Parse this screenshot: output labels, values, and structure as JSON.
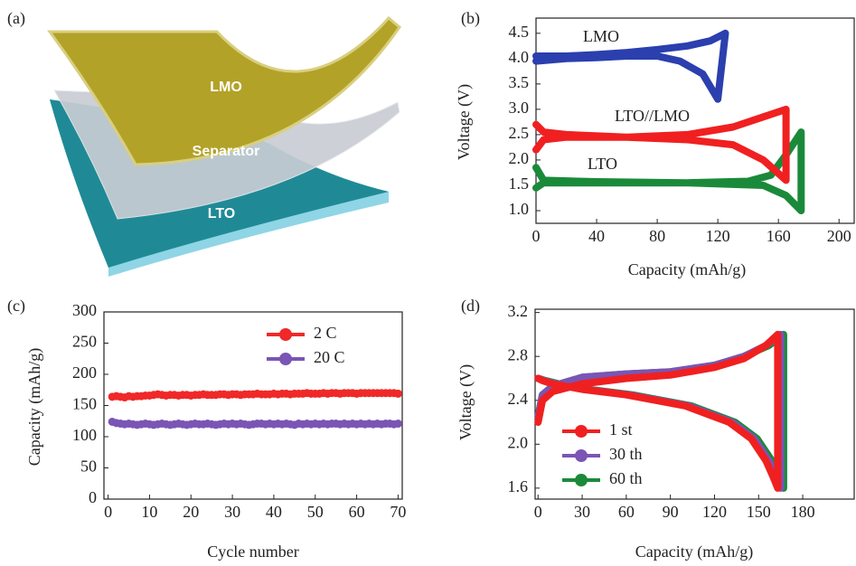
{
  "illustration": {
    "panel_label": "(a)",
    "layers": [
      "LMO",
      "Separator",
      "LTO"
    ]
  },
  "chart_data": [
    {
      "type": "line",
      "panel_label": "(b)",
      "x_label": "Capacity (mAh/g)",
      "y_label": "Voltage (V)",
      "xlim": [
        0,
        210
      ],
      "xticks": [
        0,
        40,
        80,
        120,
        160,
        200
      ],
      "ylim": [
        0.75,
        4.8
      ],
      "yticks": [
        {
          "value": 1.0,
          "label": "1.0"
        },
        1.5,
        {
          "value": 2.0,
          "label": "2.0"
        },
        2.5,
        {
          "value": 3.0,
          "label": "3.0"
        },
        3.5,
        {
          "value": 4.0,
          "label": "4.0"
        },
        4.5
      ],
      "series": [
        {
          "name": "LMO",
          "color": "#2b3fae",
          "x": [
            0,
            20,
            40,
            60,
            80,
            100,
            115,
            125,
            120,
            110,
            95,
            80,
            60,
            40,
            20,
            0
          ],
          "values": [
            4.05,
            4.05,
            4.08,
            4.12,
            4.18,
            4.25,
            4.35,
            4.5,
            3.2,
            3.7,
            3.95,
            4.05,
            4.05,
            4.02,
            4.0,
            3.95
          ]
        },
        {
          "name": "LTO//LMO",
          "color": "#f02020",
          "x": [
            0,
            5,
            20,
            60,
            100,
            130,
            150,
            165,
            165,
            150,
            130,
            100,
            60,
            20,
            5,
            0
          ],
          "values": [
            2.2,
            2.4,
            2.45,
            2.45,
            2.5,
            2.65,
            2.85,
            3.0,
            1.6,
            2.0,
            2.3,
            2.4,
            2.45,
            2.5,
            2.55,
            2.7
          ]
        },
        {
          "name": "LTO",
          "color": "#1a8a3a",
          "x": [
            0,
            5,
            40,
            100,
            140,
            155,
            165,
            175,
            175,
            165,
            150,
            100,
            40,
            5,
            0
          ],
          "values": [
            1.45,
            1.55,
            1.55,
            1.55,
            1.58,
            1.7,
            2.1,
            2.55,
            1.0,
            1.3,
            1.5,
            1.55,
            1.57,
            1.6,
            1.85
          ]
        }
      ]
    },
    {
      "type": "line",
      "panel_label": "(c)",
      "x_label": "Cycle number",
      "y_label": "Capacity (mAh/g)",
      "markers": true,
      "legend": "upper right",
      "xlim": [
        -1,
        71
      ],
      "xticks": [
        0,
        10,
        20,
        30,
        40,
        50,
        60,
        70
      ],
      "ylim": [
        0,
        300
      ],
      "yticks": [
        0,
        50,
        100,
        150,
        200,
        250,
        300
      ],
      "x": [
        1,
        2,
        3,
        4,
        5,
        6,
        7,
        8,
        9,
        10,
        11,
        12,
        13,
        14,
        15,
        16,
        17,
        18,
        19,
        20,
        21,
        22,
        23,
        24,
        25,
        26,
        27,
        28,
        29,
        30,
        31,
        32,
        33,
        34,
        35,
        36,
        37,
        38,
        39,
        40,
        41,
        42,
        43,
        44,
        45,
        46,
        47,
        48,
        49,
        50,
        51,
        52,
        53,
        54,
        55,
        56,
        57,
        58,
        59,
        60,
        61,
        62,
        63,
        64,
        65,
        66,
        67,
        68,
        69,
        70
      ],
      "series": [
        {
          "name": "2 C",
          "color": "#f02828",
          "values": [
            164,
            165,
            164,
            163,
            165,
            164,
            165,
            165,
            166,
            166,
            167,
            168,
            167,
            166,
            167,
            167,
            166,
            167,
            167,
            166,
            167,
            167,
            168,
            167,
            167,
            167,
            168,
            168,
            167,
            168,
            168,
            167,
            168,
            168,
            168,
            169,
            168,
            168,
            168,
            169,
            168,
            169,
            169,
            168,
            169,
            169,
            169,
            170,
            169,
            169,
            169,
            170,
            169,
            170,
            170,
            169,
            170,
            170,
            170,
            169,
            170,
            170,
            170,
            170,
            170,
            170,
            170,
            170,
            170,
            169
          ]
        },
        {
          "name": "20 C",
          "color": "#7a55b5",
          "values": [
            124,
            122,
            121,
            120,
            121,
            120,
            119,
            120,
            121,
            120,
            119,
            120,
            121,
            120,
            119,
            120,
            121,
            120,
            119,
            120,
            121,
            120,
            120,
            121,
            120,
            119,
            120,
            121,
            120,
            121,
            120,
            121,
            120,
            119,
            120,
            121,
            121,
            120,
            121,
            120,
            121,
            120,
            121,
            120,
            119,
            121,
            120,
            121,
            120,
            121,
            120,
            121,
            120,
            121,
            121,
            120,
            121,
            120,
            121,
            120,
            121,
            120,
            121,
            120,
            121,
            120,
            121,
            121,
            120,
            121
          ]
        }
      ]
    },
    {
      "type": "line",
      "panel_label": "(d)",
      "x_label": "Capacity (mAh/g)",
      "y_label": "Voltage (V)",
      "legend": "lower left",
      "xlim": [
        -2,
        215
      ],
      "xticks": [
        0,
        30,
        60,
        90,
        120,
        150,
        180
      ],
      "ylim": [
        1.5,
        3.23
      ],
      "yticks": [
        1.6,
        {
          "value": 2.0,
          "label": "2.0"
        },
        2.4,
        2.8,
        3.2
      ],
      "series": [
        {
          "name": "1 st",
          "color": "#f02020",
          "x": [
            0,
            3,
            10,
            30,
            60,
            90,
            120,
            140,
            155,
            163,
            163,
            160,
            155,
            145,
            130,
            100,
            60,
            30,
            10,
            3,
            0
          ],
          "values": [
            2.2,
            2.4,
            2.48,
            2.55,
            2.6,
            2.63,
            2.7,
            2.78,
            2.9,
            3.0,
            1.6,
            1.7,
            1.85,
            2.05,
            2.2,
            2.35,
            2.45,
            2.5,
            2.55,
            2.58,
            2.6
          ]
        },
        {
          "name": "30 th",
          "color": "#7a55b5",
          "x": [
            0,
            3,
            10,
            30,
            60,
            90,
            120,
            140,
            155,
            165,
            165,
            162,
            157,
            147,
            132,
            102,
            62,
            32,
            12,
            4,
            0
          ],
          "values": [
            2.25,
            2.45,
            2.53,
            2.61,
            2.64,
            2.66,
            2.72,
            2.8,
            2.9,
            3.0,
            1.6,
            1.7,
            1.85,
            2.05,
            2.2,
            2.35,
            2.45,
            2.5,
            2.55,
            2.58,
            2.6
          ]
        },
        {
          "name": "60 th",
          "color": "#1a8a3a",
          "x": [
            0,
            3,
            10,
            30,
            60,
            90,
            120,
            140,
            157,
            167,
            167,
            164,
            159,
            149,
            134,
            104,
            64,
            34,
            14,
            5,
            0
          ],
          "values": [
            2.25,
            2.45,
            2.53,
            2.61,
            2.64,
            2.66,
            2.72,
            2.8,
            2.9,
            3.0,
            1.6,
            1.7,
            1.85,
            2.05,
            2.2,
            2.35,
            2.45,
            2.5,
            2.55,
            2.58,
            2.6
          ]
        }
      ]
    }
  ]
}
